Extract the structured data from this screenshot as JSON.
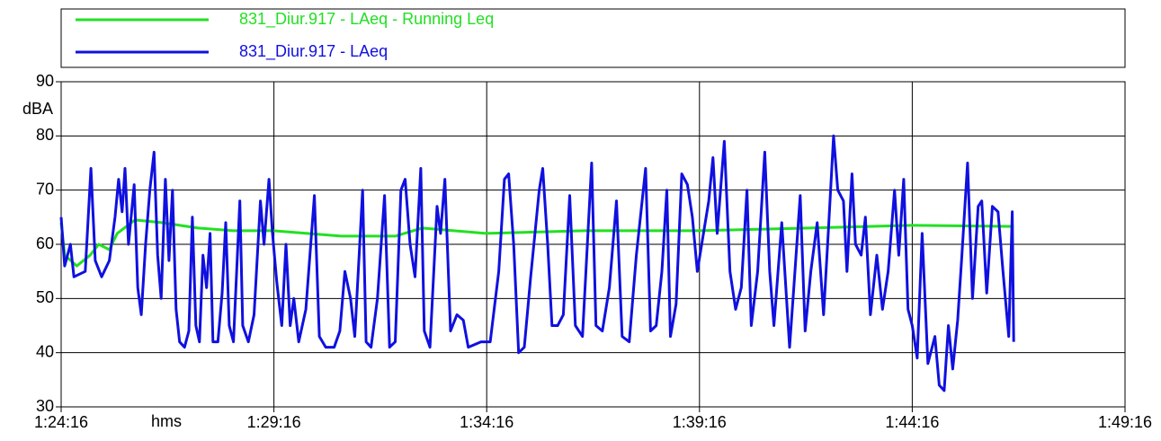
{
  "chart_data": {
    "type": "line",
    "xlabel": "hms",
    "ylabel": "dBA",
    "xlim": [
      5056,
      6556
    ],
    "xticks": [
      {
        "value": 5056,
        "label": "1:24:16"
      },
      {
        "value": 5356,
        "label": "1:29:16"
      },
      {
        "value": 5656,
        "label": "1:34:16"
      },
      {
        "value": 5956,
        "label": "1:39:16"
      },
      {
        "value": 6256,
        "label": "1:44:16"
      },
      {
        "value": 6556,
        "label": "1:49:16"
      }
    ],
    "ylim": [
      30,
      90
    ],
    "yticks": [
      30,
      40,
      50,
      60,
      70,
      80,
      90
    ],
    "grid": true,
    "series": [
      {
        "name": "831_Diur.917 - LAeq - Running Leq",
        "color": "#22e022",
        "x": [
          5056,
          5061,
          5078,
          5097,
          5109,
          5124,
          5135,
          5160,
          5198,
          5249,
          5299,
          5355,
          5451,
          5527,
          5565,
          5655,
          5794,
          5955,
          6110,
          6255,
          6399
        ],
        "values": [
          64,
          58,
          56,
          58,
          60,
          59,
          62,
          64.5,
          64,
          63,
          62.5,
          62.5,
          61.5,
          61.5,
          63,
          62,
          62.5,
          62.5,
          63,
          63.5,
          63.3
        ]
      },
      {
        "name": "831_Diur.917 - LAeq",
        "color": "#1010e0",
        "x": [
          5056,
          5061,
          5069,
          5074,
          5090,
          5098,
          5104,
          5113,
          5124,
          5132,
          5137,
          5142,
          5146,
          5151,
          5159,
          5164,
          5169,
          5175,
          5181,
          5187,
          5192,
          5197,
          5203,
          5208,
          5213,
          5218,
          5223,
          5230,
          5236,
          5241,
          5246,
          5251,
          5256,
          5261,
          5266,
          5270,
          5277,
          5283,
          5288,
          5293,
          5299,
          5308,
          5312,
          5320,
          5328,
          5337,
          5342,
          5349,
          5354,
          5360,
          5367,
          5373,
          5379,
          5384,
          5391,
          5401,
          5413,
          5420,
          5429,
          5441,
          5449,
          5456,
          5464,
          5470,
          5477,
          5481,
          5486,
          5493,
          5502,
          5512,
          5519,
          5527,
          5535,
          5541,
          5548,
          5555,
          5563,
          5568,
          5576,
          5586,
          5591,
          5597,
          5605,
          5614,
          5623,
          5630,
          5648,
          5661,
          5673,
          5681,
          5687,
          5694,
          5701,
          5709,
          5718,
          5730,
          5735,
          5742,
          5748,
          5756,
          5764,
          5773,
          5781,
          5791,
          5804,
          5810,
          5819,
          5829,
          5839,
          5847,
          5857,
          5867,
          5880,
          5887,
          5895,
          5903,
          5910,
          5915,
          5923,
          5931,
          5939,
          5946,
          5953,
          5969,
          5975,
          5981,
          5991,
          5999,
          6007,
          6015,
          6023,
          6029,
          6038,
          6048,
          6055,
          6061,
          6072,
          6083,
          6089,
          6098,
          6105,
          6113,
          6122,
          6131,
          6138,
          6145,
          6151,
          6159,
          6164,
          6171,
          6176,
          6184,
          6190,
          6197,
          6206,
          6214,
          6222,
          6231,
          6237,
          6244,
          6250,
          6256,
          6263,
          6270,
          6278,
          6288,
          6294,
          6301,
          6307,
          6313,
          6320,
          6326,
          6334,
          6341,
          6349,
          6354,
          6361,
          6369,
          6377,
          6384,
          6392,
          6397,
          6399
        ],
        "values": [
          65,
          56,
          60,
          54,
          55,
          74,
          57,
          54,
          57,
          65,
          72,
          66,
          74,
          60,
          71,
          52,
          47,
          60,
          70,
          77,
          58,
          50,
          72,
          57,
          70,
          48,
          42,
          41,
          44,
          65,
          45,
          42,
          58,
          52,
          62,
          42,
          42,
          51,
          64,
          45,
          42,
          68,
          45,
          42,
          47,
          68,
          60,
          72,
          62,
          53,
          45,
          60,
          45,
          50,
          42,
          48,
          69,
          43,
          41,
          41,
          44,
          55,
          50,
          43,
          60,
          70,
          42,
          41,
          50,
          69,
          41,
          42,
          70,
          72,
          60,
          54,
          74,
          44,
          41,
          67,
          62,
          72,
          44,
          47,
          46,
          41,
          42,
          42,
          55,
          72,
          73,
          60,
          40,
          41,
          54,
          70,
          74,
          60,
          45,
          45,
          47,
          69,
          45,
          43,
          75,
          45,
          44,
          52,
          68,
          43,
          42,
          58,
          74,
          44,
          45,
          55,
          70,
          43,
          49,
          73,
          71,
          65,
          55,
          68,
          76,
          62,
          79,
          55,
          48,
          52,
          70,
          45,
          55,
          77,
          55,
          45,
          64,
          41,
          52,
          69,
          44,
          55,
          64,
          47,
          63,
          80,
          70,
          68,
          55,
          73,
          60,
          58,
          65,
          47,
          58,
          48,
          55,
          70,
          58,
          72,
          48,
          45,
          39,
          62,
          38,
          43,
          34,
          33,
          45,
          37,
          46,
          58,
          75,
          50,
          67,
          68,
          51,
          67,
          66,
          55,
          43,
          66,
          42
        ]
      }
    ]
  }
}
